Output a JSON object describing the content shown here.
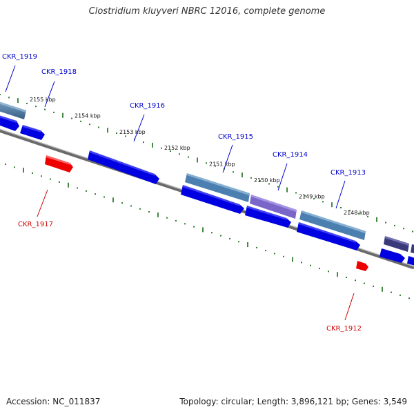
{
  "title": "Clostridium kluyveri NBRC 12016, complete genome",
  "accession_label": "Accession: NC_011837",
  "summary_label": "Topology: circular; Length: 3,896,121 bp; Genes: 3,549",
  "ticks": [
    {
      "label": "2155 kbp",
      "t": 80
    },
    {
      "label": "2154 kbp",
      "t": 145
    },
    {
      "label": "2153 kbp",
      "t": 210
    },
    {
      "label": "2152 kbp",
      "t": 275
    },
    {
      "label": "2151 kbp",
      "t": 340
    },
    {
      "label": "2150 kbp",
      "t": 405
    },
    {
      "label": "2149 kbp",
      "t": 470
    },
    {
      "label": "2148 kbp",
      "t": 535
    }
  ],
  "genes": [
    {
      "id": "CKR_1919",
      "name": "CKR_1919",
      "strand": "fwd",
      "color": "#4a7fb0"
    },
    {
      "id": "CKR_1918",
      "name": "CKR_1918",
      "strand": "fwd",
      "color": "#0000e0"
    },
    {
      "id": "CKR_1917",
      "name": "CKR_1917",
      "strand": "rev",
      "color": "#ee0000"
    },
    {
      "id": "CKR_1916",
      "name": "CKR_1916",
      "strand": "fwd",
      "color": "#0000e0"
    },
    {
      "id": "CKR_1915",
      "name": "CKR_1915",
      "strand": "fwd",
      "color": "#4a7fb0"
    },
    {
      "id": "CKR_1914",
      "name": "CKR_1914",
      "strand": "fwd",
      "color": "#7a65c8"
    },
    {
      "id": "CKR_1913",
      "name": "CKR_1913",
      "strand": "fwd",
      "color": "#4a7fb0"
    },
    {
      "id": "CKR_1912",
      "name": "CKR_1912",
      "strand": "rev",
      "color": "#ee0000"
    }
  ],
  "colors": {
    "backbone": "#777777",
    "tick": "#2f7a2f",
    "label_fwd": "#0000cc",
    "label_rev": "#cc0000"
  }
}
